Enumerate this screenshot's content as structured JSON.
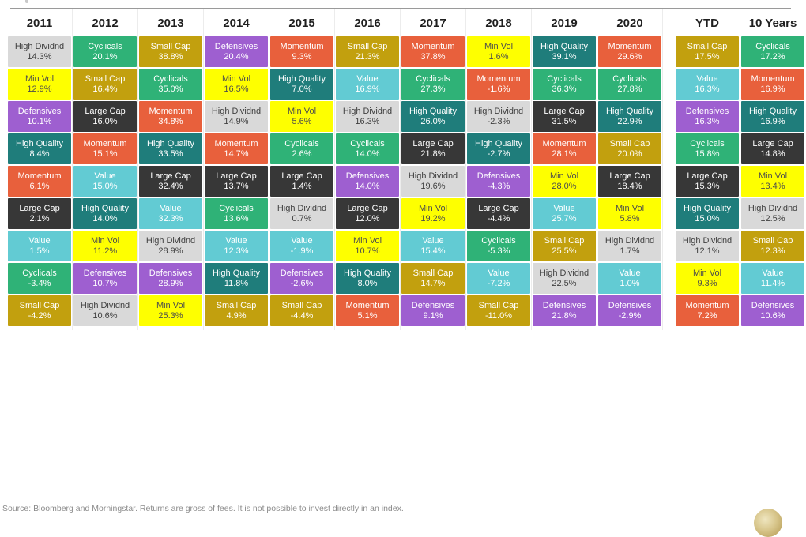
{
  "page": {
    "source_note": "Source: Bloomberg and Morningstar. Returns are gross of fees. It is not possible to invest directly in an index."
  },
  "chart_data": {
    "type": "table",
    "description": "Periodic table of factor returns ranked best to worst per column",
    "legend_position": "none",
    "factors": [
      "High Dividnd",
      "Min Vol",
      "Defensives",
      "High Quality",
      "Momentum",
      "Large Cap",
      "Value",
      "Cyclicals",
      "Small Cap"
    ],
    "factor_colors": {
      "High Dividnd": {
        "bg": "#d9d9d9",
        "text": "#404040"
      },
      "Min Vol": {
        "bg": "#feff00",
        "text": "#4d4d4d"
      },
      "Defensives": {
        "bg": "#9e5fd0",
        "text": "#ffffff"
      },
      "High Quality": {
        "bg": "#1f7d7b",
        "text": "#ffffff"
      },
      "Momentum": {
        "bg": "#e8603c",
        "text": "#ffffff"
      },
      "Large Cap": {
        "bg": "#373737",
        "text": "#ffffff"
      },
      "Value": {
        "bg": "#62cbd3",
        "text": "#ffffff"
      },
      "Cyclicals": {
        "bg": "#2fb277",
        "text": "#ffffff"
      },
      "Small Cap": {
        "bg": "#c2a00e",
        "text": "#ffffff"
      }
    },
    "columns": [
      {
        "label": "2011",
        "cells": [
          {
            "factor": "High Dividnd",
            "value": "14.3%"
          },
          {
            "factor": "Min Vol",
            "value": "12.9%"
          },
          {
            "factor": "Defensives",
            "value": "10.1%"
          },
          {
            "factor": "High Quality",
            "value": "8.4%"
          },
          {
            "factor": "Momentum",
            "value": "6.1%"
          },
          {
            "factor": "Large Cap",
            "value": "2.1%"
          },
          {
            "factor": "Value",
            "value": "1.5%"
          },
          {
            "factor": "Cyclicals",
            "value": "-3.4%"
          },
          {
            "factor": "Small Cap",
            "value": "-4.2%"
          }
        ]
      },
      {
        "label": "2012",
        "cells": [
          {
            "factor": "Cyclicals",
            "value": "20.1%"
          },
          {
            "factor": "Small Cap",
            "value": "16.4%"
          },
          {
            "factor": "Large Cap",
            "value": "16.0%"
          },
          {
            "factor": "Momentum",
            "value": "15.1%"
          },
          {
            "factor": "Value",
            "value": "15.0%"
          },
          {
            "factor": "High Quality",
            "value": "14.0%"
          },
          {
            "factor": "Min Vol",
            "value": "11.2%"
          },
          {
            "factor": "Defensives",
            "value": "10.7%"
          },
          {
            "factor": "High Dividnd",
            "value": "10.6%"
          }
        ]
      },
      {
        "label": "2013",
        "cells": [
          {
            "factor": "Small Cap",
            "value": "38.8%"
          },
          {
            "factor": "Cyclicals",
            "value": "35.0%"
          },
          {
            "factor": "Momentum",
            "value": "34.8%"
          },
          {
            "factor": "High Quality",
            "value": "33.5%"
          },
          {
            "factor": "Large Cap",
            "value": "32.4%"
          },
          {
            "factor": "Value",
            "value": "32.3%"
          },
          {
            "factor": "High Dividnd",
            "value": "28.9%"
          },
          {
            "factor": "Defensives",
            "value": "28.9%"
          },
          {
            "factor": "Min Vol",
            "value": "25.3%"
          }
        ]
      },
      {
        "label": "2014",
        "cells": [
          {
            "factor": "Defensives",
            "value": "20.4%"
          },
          {
            "factor": "Min Vol",
            "value": "16.5%"
          },
          {
            "factor": "High Dividnd",
            "value": "14.9%"
          },
          {
            "factor": "Momentum",
            "value": "14.7%"
          },
          {
            "factor": "Large Cap",
            "value": "13.7%"
          },
          {
            "factor": "Cyclicals",
            "value": "13.6%"
          },
          {
            "factor": "Value",
            "value": "12.3%"
          },
          {
            "factor": "High Quality",
            "value": "11.8%"
          },
          {
            "factor": "Small Cap",
            "value": "4.9%"
          }
        ]
      },
      {
        "label": "2015",
        "cells": [
          {
            "factor": "Momentum",
            "value": "9.3%"
          },
          {
            "factor": "High Quality",
            "value": "7.0%"
          },
          {
            "factor": "Min Vol",
            "value": "5.6%"
          },
          {
            "factor": "Cyclicals",
            "value": "2.6%"
          },
          {
            "factor": "Large Cap",
            "value": "1.4%"
          },
          {
            "factor": "High Dividnd",
            "value": "0.7%"
          },
          {
            "factor": "Value",
            "value": "-1.9%"
          },
          {
            "factor": "Defensives",
            "value": "-2.6%"
          },
          {
            "factor": "Small Cap",
            "value": "-4.4%"
          }
        ]
      },
      {
        "label": "2016",
        "cells": [
          {
            "factor": "Small Cap",
            "value": "21.3%"
          },
          {
            "factor": "Value",
            "value": "16.9%"
          },
          {
            "factor": "High Dividnd",
            "value": "16.3%"
          },
          {
            "factor": "Cyclicals",
            "value": "14.0%"
          },
          {
            "factor": "Defensives",
            "value": "14.0%"
          },
          {
            "factor": "Large Cap",
            "value": "12.0%"
          },
          {
            "factor": "Min Vol",
            "value": "10.7%"
          },
          {
            "factor": "High Quality",
            "value": "8.0%"
          },
          {
            "factor": "Momentum",
            "value": "5.1%"
          }
        ]
      },
      {
        "label": "2017",
        "cells": [
          {
            "factor": "Momentum",
            "value": "37.8%"
          },
          {
            "factor": "Cyclicals",
            "value": "27.3%"
          },
          {
            "factor": "High Quality",
            "value": "26.0%"
          },
          {
            "factor": "Large Cap",
            "value": "21.8%"
          },
          {
            "factor": "High Dividnd",
            "value": "19.6%"
          },
          {
            "factor": "Min Vol",
            "value": "19.2%"
          },
          {
            "factor": "Value",
            "value": "15.4%"
          },
          {
            "factor": "Small Cap",
            "value": "14.7%"
          },
          {
            "factor": "Defensives",
            "value": "9.1%"
          }
        ]
      },
      {
        "label": "2018",
        "cells": [
          {
            "factor": "Min Vol",
            "value": "1.6%"
          },
          {
            "factor": "Momentum",
            "value": "-1.6%"
          },
          {
            "factor": "High Dividnd",
            "value": "-2.3%"
          },
          {
            "factor": "High Quality",
            "value": "-2.7%"
          },
          {
            "factor": "Defensives",
            "value": "-4.3%"
          },
          {
            "factor": "Large Cap",
            "value": "-4.4%"
          },
          {
            "factor": "Cyclicals",
            "value": "-5.3%"
          },
          {
            "factor": "Value",
            "value": "-7.2%"
          },
          {
            "factor": "Small Cap",
            "value": "-11.0%"
          }
        ]
      },
      {
        "label": "2019",
        "cells": [
          {
            "factor": "High Quality",
            "value": "39.1%"
          },
          {
            "factor": "Cyclicals",
            "value": "36.3%"
          },
          {
            "factor": "Large Cap",
            "value": "31.5%"
          },
          {
            "factor": "Momentum",
            "value": "28.1%"
          },
          {
            "factor": "Min Vol",
            "value": "28.0%"
          },
          {
            "factor": "Value",
            "value": "25.7%"
          },
          {
            "factor": "Small Cap",
            "value": "25.5%"
          },
          {
            "factor": "High Dividnd",
            "value": "22.5%"
          },
          {
            "factor": "Defensives",
            "value": "21.8%"
          }
        ]
      },
      {
        "label": "2020",
        "cells": [
          {
            "factor": "Momentum",
            "value": "29.6%"
          },
          {
            "factor": "Cyclicals",
            "value": "27.8%"
          },
          {
            "factor": "High Quality",
            "value": "22.9%"
          },
          {
            "factor": "Small Cap",
            "value": "20.0%"
          },
          {
            "factor": "Large Cap",
            "value": "18.4%"
          },
          {
            "factor": "Min Vol",
            "value": "5.8%"
          },
          {
            "factor": "High Dividnd",
            "value": "1.7%"
          },
          {
            "factor": "Value",
            "value": "1.0%"
          },
          {
            "factor": "Defensives",
            "value": "-2.9%"
          }
        ]
      },
      {
        "label": "YTD",
        "gap_before": true,
        "cells": [
          {
            "factor": "Small Cap",
            "value": "17.5%"
          },
          {
            "factor": "Value",
            "value": "16.3%"
          },
          {
            "factor": "Defensives",
            "value": "16.3%"
          },
          {
            "factor": "Cyclicals",
            "value": "15.8%"
          },
          {
            "factor": "Large Cap",
            "value": "15.3%"
          },
          {
            "factor": "High Quality",
            "value": "15.0%"
          },
          {
            "factor": "High Dividnd",
            "value": "12.1%"
          },
          {
            "factor": "Min Vol",
            "value": "9.3%"
          },
          {
            "factor": "Momentum",
            "value": "7.2%"
          }
        ]
      },
      {
        "label": "10 Years",
        "cells": [
          {
            "factor": "Cyclicals",
            "value": "17.2%"
          },
          {
            "factor": "Momentum",
            "value": "16.9%"
          },
          {
            "factor": "High Quality",
            "value": "16.9%"
          },
          {
            "factor": "Large Cap",
            "value": "14.8%"
          },
          {
            "factor": "Min Vol",
            "value": "13.4%"
          },
          {
            "factor": "High Dividnd",
            "value": "12.5%"
          },
          {
            "factor": "Small Cap",
            "value": "12.3%"
          },
          {
            "factor": "Value",
            "value": "11.4%"
          },
          {
            "factor": "Defensives",
            "value": "10.6%"
          }
        ]
      }
    ]
  }
}
